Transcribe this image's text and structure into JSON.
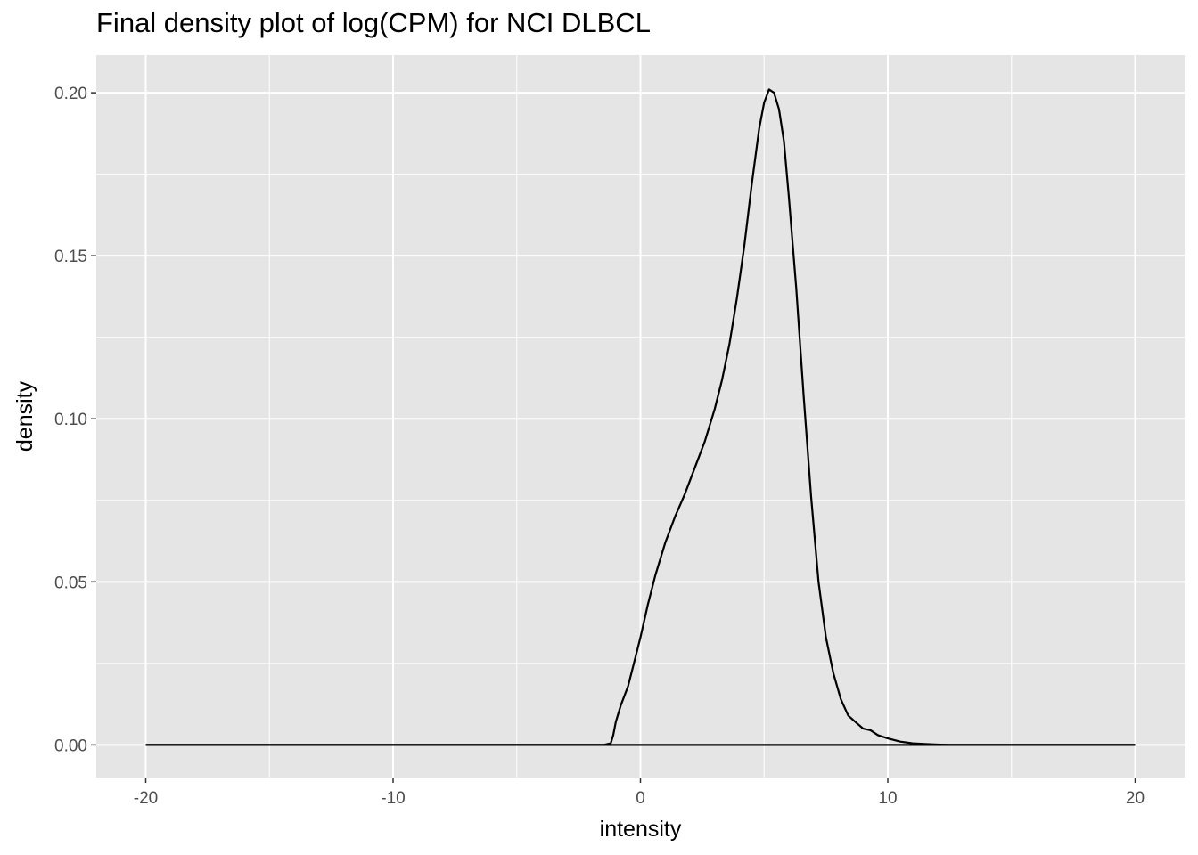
{
  "chart_data": {
    "type": "line",
    "title": "Final density plot of log(CPM) for NCI DLBCL",
    "xlabel": "intensity",
    "ylabel": "density",
    "xlim": [
      -22,
      22
    ],
    "ylim": [
      -0.01,
      0.2115
    ],
    "x_ticks": [
      -20,
      -10,
      0,
      10,
      20
    ],
    "x_tick_labels": [
      "-20",
      "-10",
      "0",
      "10",
      "20"
    ],
    "y_ticks": [
      0,
      0.05,
      0.1,
      0.15,
      0.2
    ],
    "y_tick_labels": [
      "0.00",
      "0.05",
      "0.10",
      "0.15",
      "0.20"
    ],
    "grid": true,
    "background": "#e5e5e5",
    "gridColor": "#ffffff",
    "lineColor": "#000000",
    "series": [
      {
        "x": [
          -20,
          -15,
          -10,
          -5,
          -1.5,
          -1.2,
          -1.1,
          -1.0,
          -0.8,
          -0.5,
          -0.2,
          0,
          0.3,
          0.6,
          1.0,
          1.4,
          1.8,
          2.2,
          2.6,
          3.0,
          3.3,
          3.6,
          3.9,
          4.2,
          4.5,
          4.8,
          5.0,
          5.2,
          5.4,
          5.6,
          5.8,
          6.0,
          6.3,
          6.6,
          6.9,
          7.2,
          7.5,
          7.8,
          8.1,
          8.4,
          8.7,
          9.0,
          9.3,
          9.6,
          10.0,
          10.5,
          11.0,
          11.5,
          12.0,
          12.5,
          13.0,
          14.0,
          15.0,
          17.0,
          20.0
        ],
        "y": [
          0,
          0,
          0,
          0,
          0,
          0.0005,
          0.003,
          0.007,
          0.012,
          0.018,
          0.027,
          0.033,
          0.043,
          0.052,
          0.062,
          0.07,
          0.077,
          0.085,
          0.093,
          0.103,
          0.112,
          0.123,
          0.137,
          0.153,
          0.172,
          0.189,
          0.197,
          0.201,
          0.2,
          0.195,
          0.185,
          0.168,
          0.14,
          0.107,
          0.076,
          0.05,
          0.033,
          0.022,
          0.014,
          0.009,
          0.007,
          0.005,
          0.0045,
          0.003,
          0.002,
          0.001,
          0.0005,
          0.0003,
          0.0001,
          0,
          0,
          0,
          0,
          0,
          0
        ]
      }
    ]
  }
}
